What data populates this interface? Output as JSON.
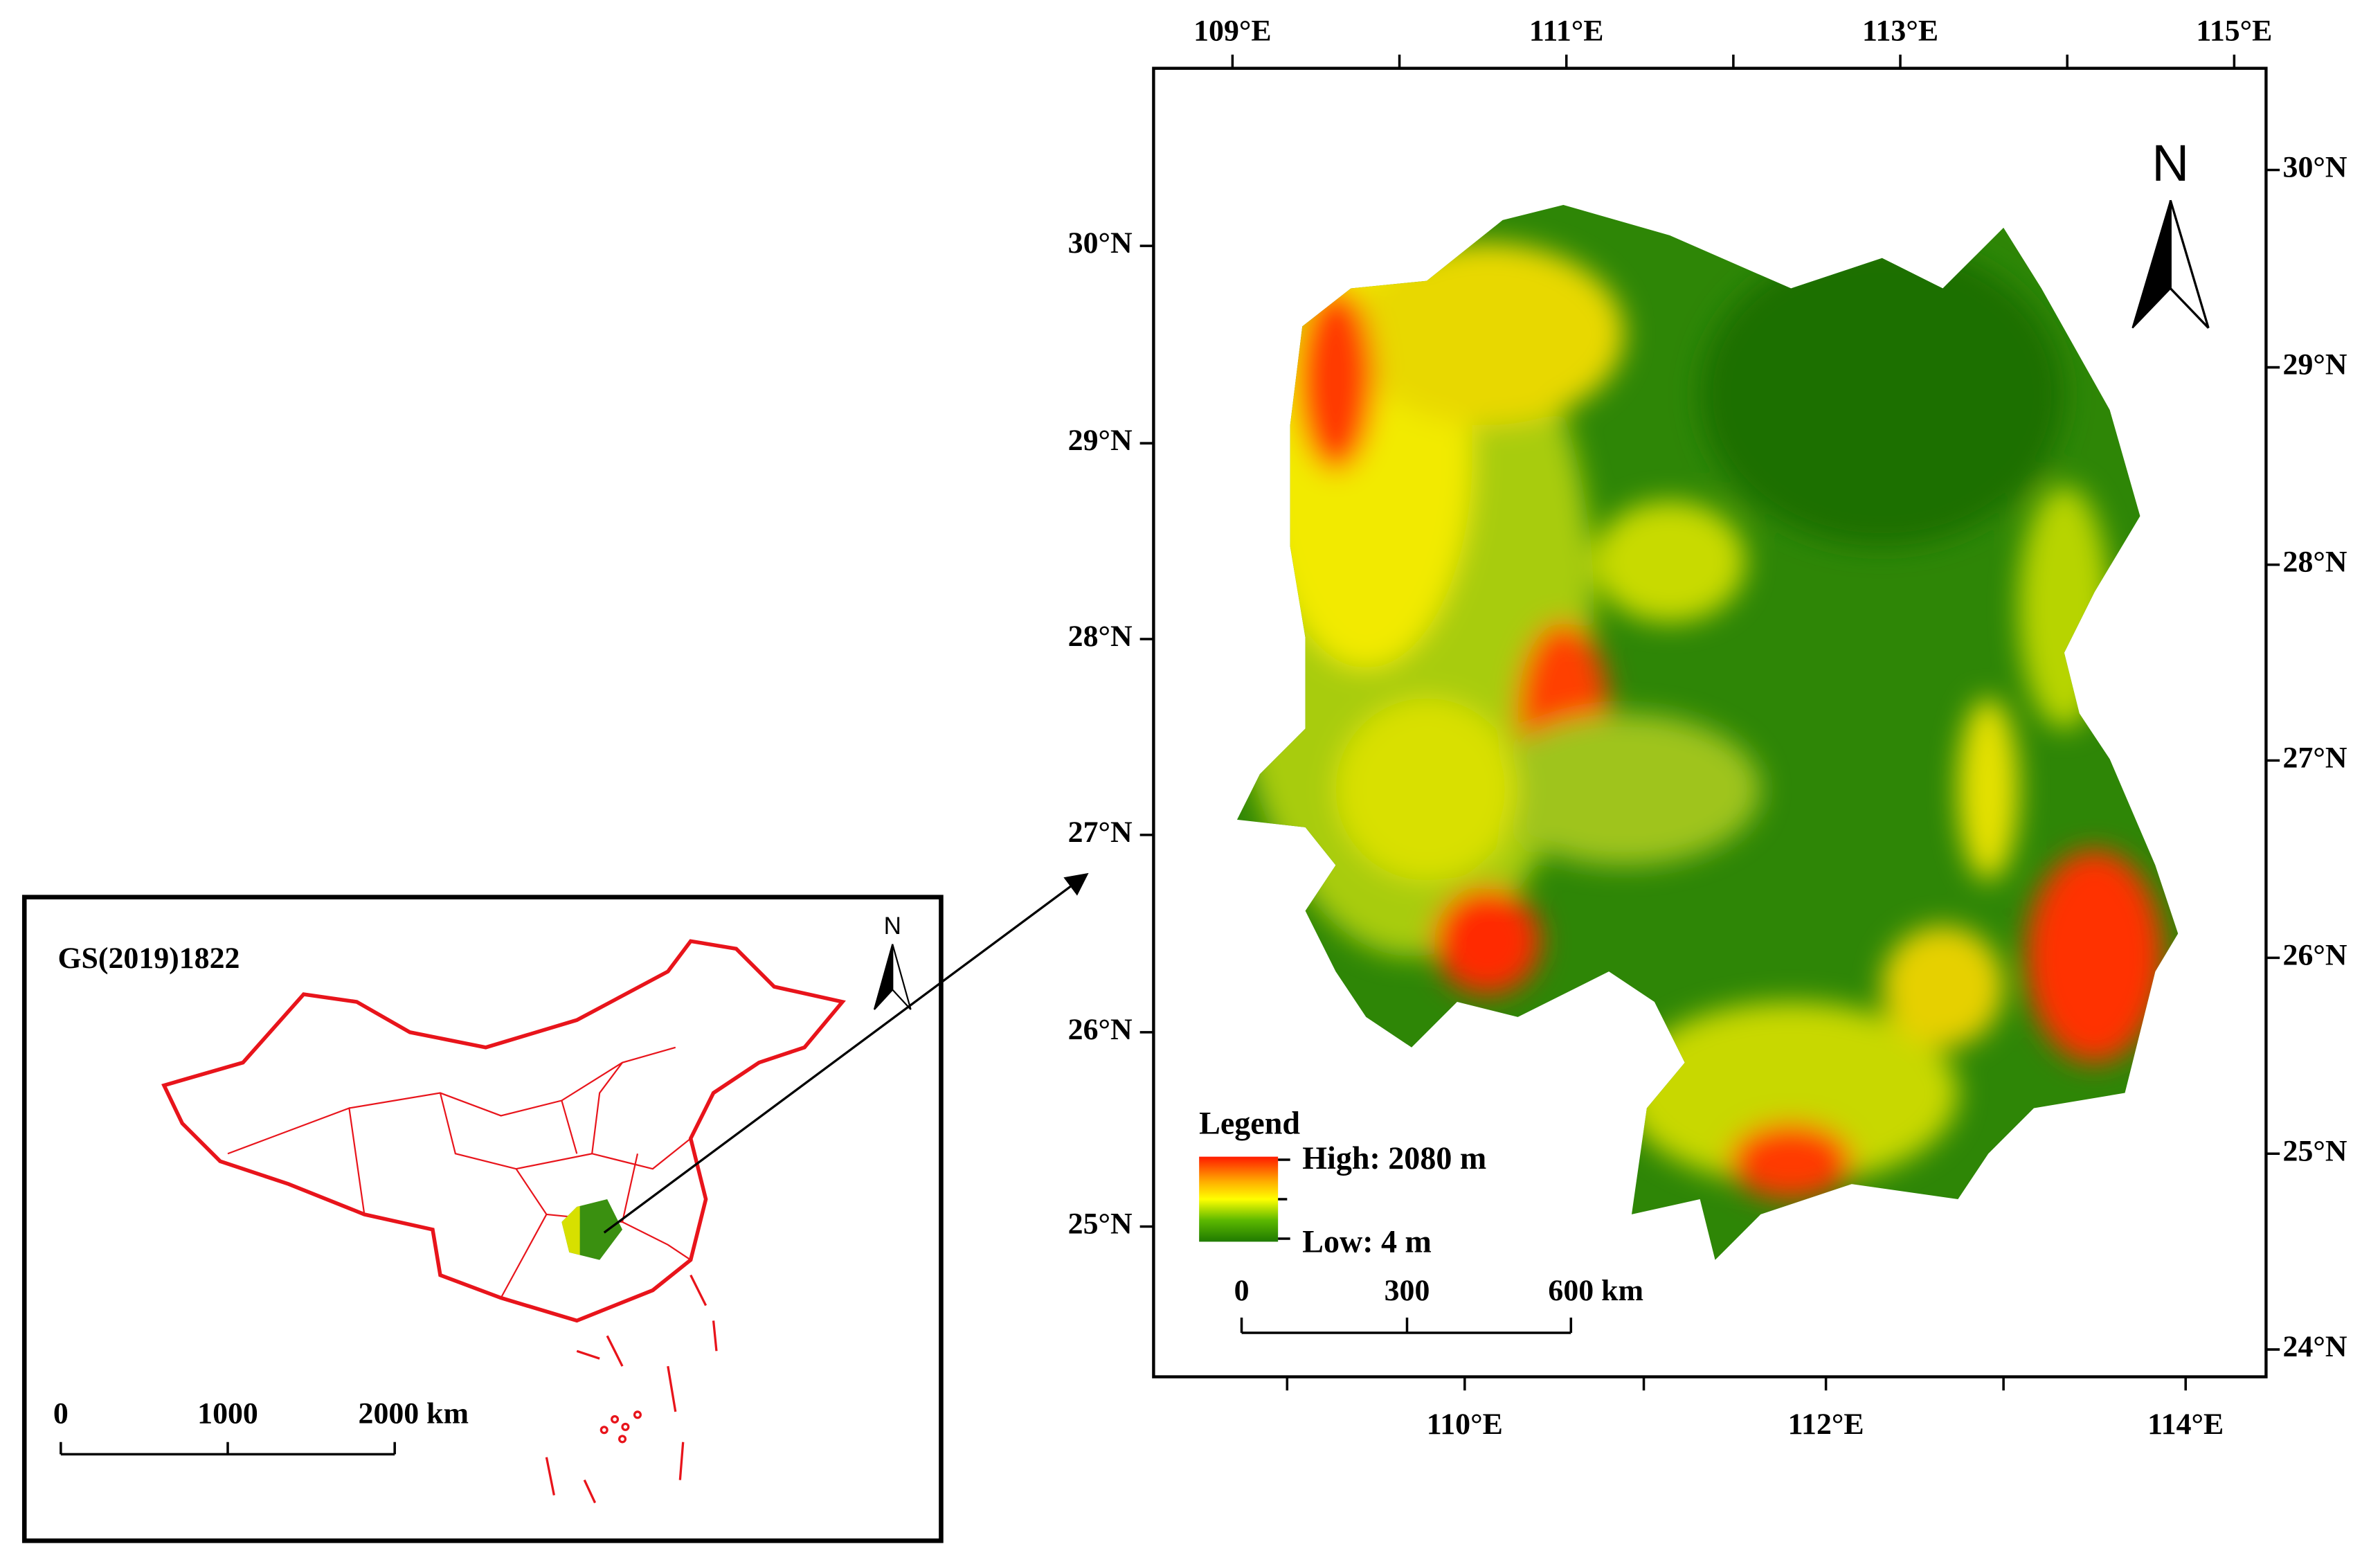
{
  "inset_map": {
    "code": "GS(2019)1822",
    "north": "N",
    "scale_labels": [
      "0",
      "1000",
      "2000 km"
    ]
  },
  "main_map": {
    "north": "N",
    "top_labels": [
      "109°E",
      "111°E",
      "113°E",
      "115°E"
    ],
    "bottom_labels": [
      "110°E",
      "112°E",
      "114°E"
    ],
    "left_labels": [
      "30°N",
      "29°N",
      "28°N",
      "27°N",
      "26°N",
      "25°N"
    ],
    "right_labels": [
      "30°N",
      "29°N",
      "28°N",
      "27°N",
      "26°N",
      "25°N",
      "24°N"
    ],
    "legend": {
      "title": "Legend",
      "high": "High: 2080 m",
      "low": "Low: 4 m"
    },
    "scale_labels": [
      "0",
      "300",
      "600 km"
    ]
  }
}
